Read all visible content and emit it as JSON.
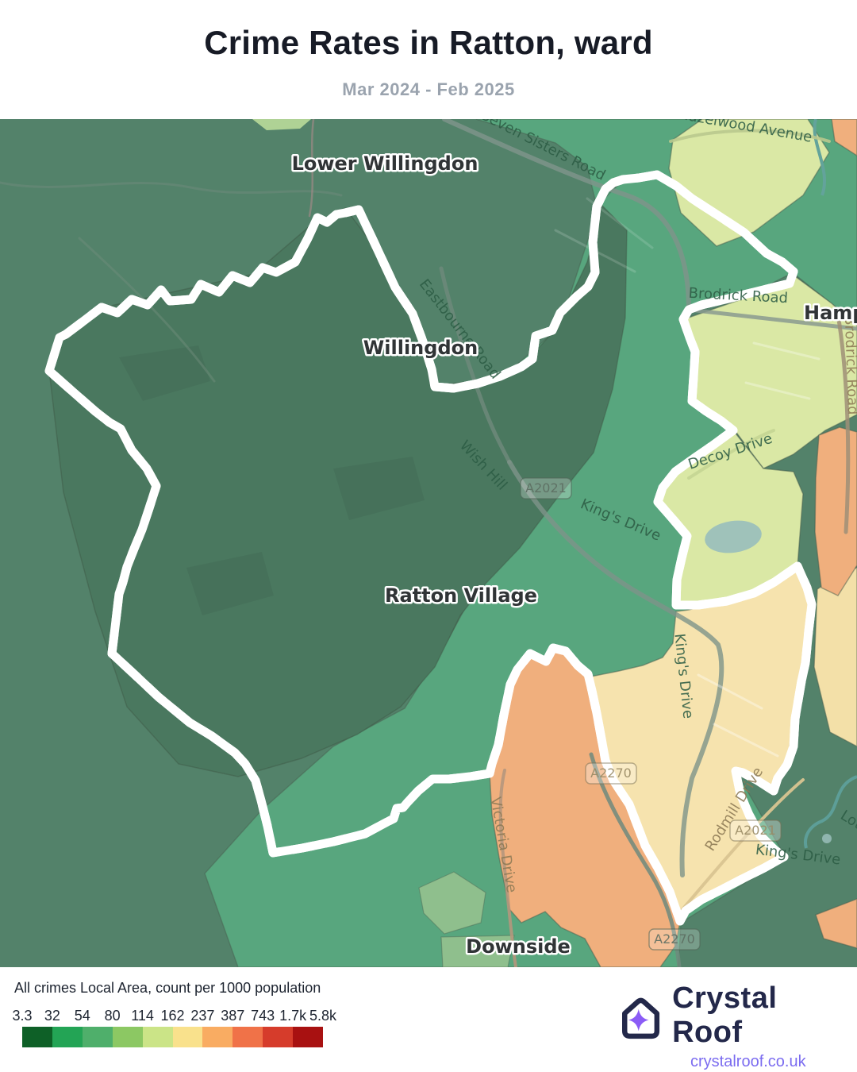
{
  "header": {
    "title": "Crime Rates in Ratton, ward",
    "subtitle": "Mar 2024 - Feb 2025"
  },
  "map": {
    "boundary_name": "Ratton ward boundary",
    "place_labels": [
      {
        "label": "Lower Willingdon"
      },
      {
        "label": "Willingdon"
      },
      {
        "label": "Ratton Village"
      },
      {
        "label": "Downside"
      },
      {
        "label": "Hampden Park"
      }
    ],
    "road_labels": [
      {
        "label": "Seven Sisters Road"
      },
      {
        "label": "Hazelwood Avenue"
      },
      {
        "label": "Eastbourne Road"
      },
      {
        "label": "Wish Hill"
      },
      {
        "label": "King's Drive"
      },
      {
        "label": "Decoy Drive"
      },
      {
        "label": "Brodrick Road"
      },
      {
        "label": "Brodrick Road"
      },
      {
        "label": "King's Drive"
      },
      {
        "label": "Rodmill Drive"
      },
      {
        "label": "Victoria Drive"
      },
      {
        "label": "King's Drive"
      },
      {
        "label": "Lottbridge Drove"
      }
    ],
    "shields": [
      {
        "label": "A2021"
      },
      {
        "label": "A2021"
      },
      {
        "label": "A2270"
      },
      {
        "label": "A2270"
      }
    ]
  },
  "legend": {
    "title": "All crimes Local Area, count per 1000 population",
    "ticks": [
      "3.3",
      "32",
      "54",
      "80",
      "114",
      "162",
      "237",
      "387",
      "743",
      "1.7k",
      "5.8k"
    ],
    "colors": [
      "#0e6027",
      "#23a455",
      "#4faf6b",
      "#8cc863",
      "#cbe487",
      "#f9e18c",
      "#f9ac62",
      "#f07248",
      "#d63c2b",
      "#a81111"
    ]
  },
  "footer": {
    "brand": "Crystal Roof",
    "website": "crystalroof.co.uk"
  },
  "colors": {
    "boundary_purple": "#5636d8",
    "boundary_casing": "#ffffff",
    "brand_navy": "#23284a",
    "brand_purple": "#8b5cf6",
    "link_purple": "#7b6cf0"
  }
}
